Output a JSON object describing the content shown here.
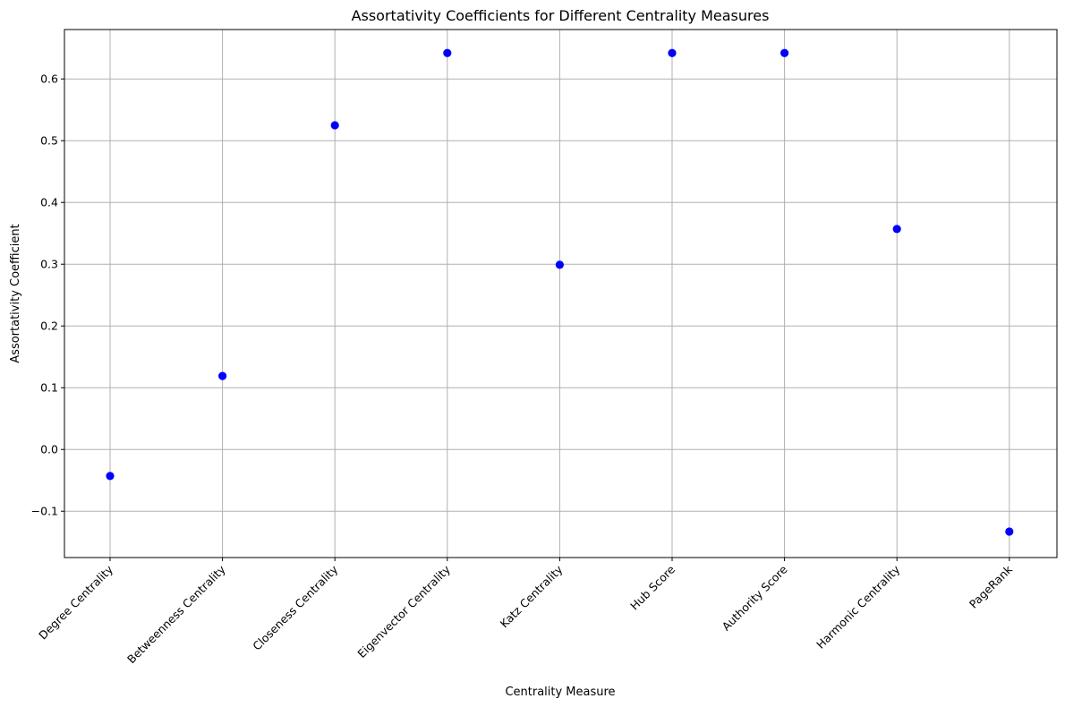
{
  "chart_data": {
    "type": "scatter",
    "title": "Assortativity Coefficients for Different Centrality Measures",
    "xlabel": "Centrality Measure",
    "ylabel": "Assortativity Coefficient",
    "categories": [
      "Degree Centrality",
      "Betweenness Centrality",
      "Closeness Centrality",
      "Eigenvector Centrality",
      "Katz Centrality",
      "Hub Score",
      "Authority Score",
      "Harmonic Centrality",
      "PageRank"
    ],
    "values": [
      -0.043,
      0.119,
      0.525,
      0.642,
      0.299,
      0.642,
      0.642,
      0.357,
      -0.133
    ],
    "ylim": [
      -0.175,
      0.68
    ],
    "yticks": [
      -0.1,
      0.0,
      0.1,
      0.2,
      0.3,
      0.4,
      0.5,
      0.6
    ],
    "ytick_labels": [
      "−0.1",
      "0.0",
      "0.1",
      "0.2",
      "0.3",
      "0.4",
      "0.5",
      "0.6"
    ],
    "grid": true,
    "marker_color": "#0000ff"
  }
}
